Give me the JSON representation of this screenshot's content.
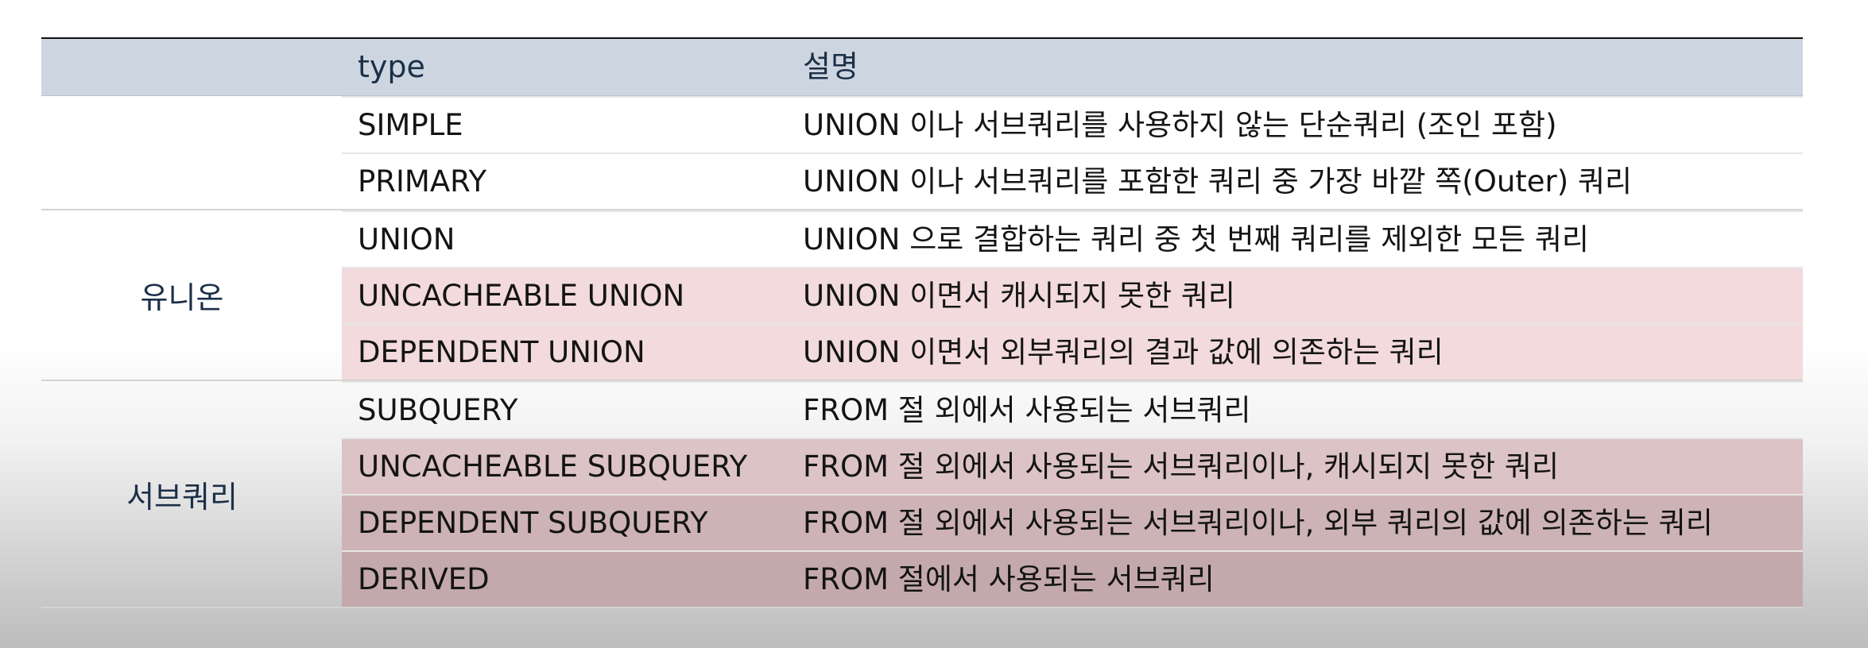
{
  "header": {
    "col1": "",
    "col2": "type",
    "col3": "설명"
  },
  "groups": [
    {
      "label": "",
      "rows": [
        {
          "type": "SIMPLE",
          "desc": "UNION 이나 서브쿼리를 사용하지 않는 단순쿼리 (조인 포함)",
          "highlight": false
        },
        {
          "type": "PRIMARY",
          "desc": "UNION 이나 서브쿼리를 포함한 쿼리 중 가장 바깥 쪽(Outer) 쿼리",
          "highlight": false
        }
      ]
    },
    {
      "label": "유니온",
      "rows": [
        {
          "type": "UNION",
          "desc": "UNION 으로 결합하는 쿼리 중 첫 번째 쿼리를 제외한 모든 쿼리",
          "highlight": false
        },
        {
          "type": "UNCACHEABLE UNION",
          "desc": "UNION 이면서 캐시되지 못한 쿼리",
          "highlight": true
        },
        {
          "type": "DEPENDENT UNION",
          "desc": "UNION 이면서 외부쿼리의 결과 값에 의존하는 쿼리",
          "highlight": true
        }
      ]
    },
    {
      "label": "서브쿼리",
      "rows": [
        {
          "type": "SUBQUERY",
          "desc": "FROM 절 외에서 사용되는 서브쿼리",
          "highlight": false
        },
        {
          "type": "UNCACHEABLE SUBQUERY",
          "desc": "FROM 절 외에서 사용되는 서브쿼리이나, 캐시되지 못한 쿼리",
          "highlight": true
        },
        {
          "type": "DEPENDENT SUBQUERY",
          "desc": "FROM 절 외에서 사용되는 서브쿼리이나, 외부 쿼리의 값에 의존하는 쿼리",
          "highlight": true
        },
        {
          "type": "DERIVED",
          "desc": "FROM 절에서 사용되는 서브쿼리",
          "highlight": true
        }
      ]
    }
  ],
  "colors": {
    "header_bg": "#cdd6e0",
    "highlight_bg": "#f2dadd",
    "header_text": "#1b2f48"
  }
}
